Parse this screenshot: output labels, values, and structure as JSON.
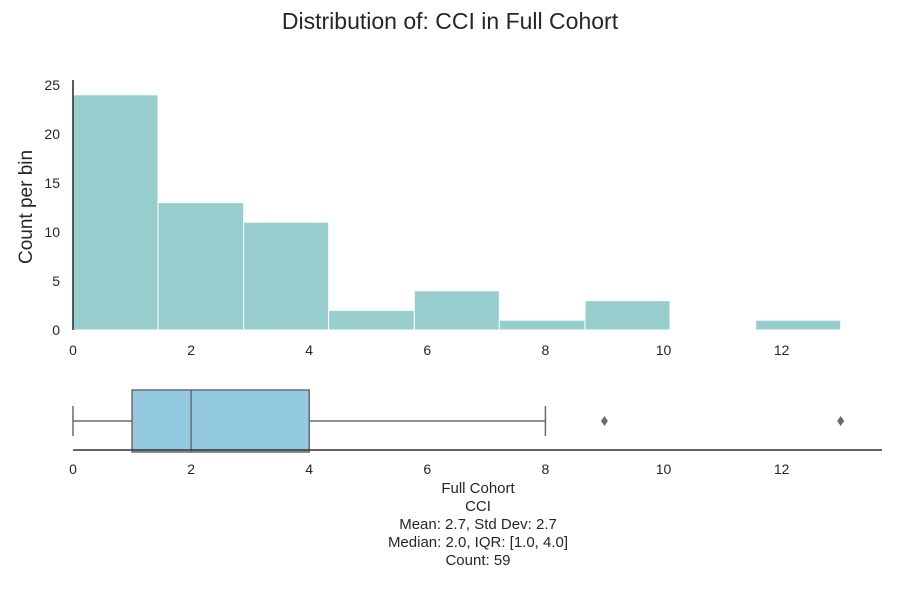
{
  "chart_data": [
    {
      "type": "histogram",
      "title": "Distribution of: CCI in Full Cohort",
      "xlabel": "",
      "ylabel": "Count per bin",
      "bin_edges": [
        0,
        1.44,
        2.89,
        4.33,
        5.78,
        7.22,
        8.67,
        10.11,
        11.56,
        13
      ],
      "counts": [
        24,
        13,
        11,
        2,
        4,
        1,
        3,
        0,
        1
      ],
      "xlim": [
        0,
        13.7
      ],
      "ylim": [
        0,
        25
      ],
      "xticks": [
        0,
        2,
        4,
        6,
        8,
        10,
        12
      ],
      "yticks": [
        0,
        5,
        10,
        15,
        20,
        25
      ],
      "color": "#98CDCD",
      "edge_color": "#FFFFFF",
      "grid": false
    },
    {
      "type": "box",
      "xlim": [
        0,
        13.7
      ],
      "xticks": [
        0,
        2,
        4,
        6,
        8,
        10,
        12
      ],
      "whisker_low": 0,
      "q1": 1.0,
      "median": 2.0,
      "q3": 4.0,
      "whisker_high": 8,
      "outliers": [
        9,
        13
      ],
      "color": "#93C9E1",
      "line_color": "#6B6B6B",
      "xlabel_lines": [
        "Full Cohort",
        "CCI",
        "Mean: 2.7, Std Dev: 2.7",
        "Median: 2.0, IQR: [1.0, 4.0]",
        "Count: 59"
      ]
    }
  ]
}
